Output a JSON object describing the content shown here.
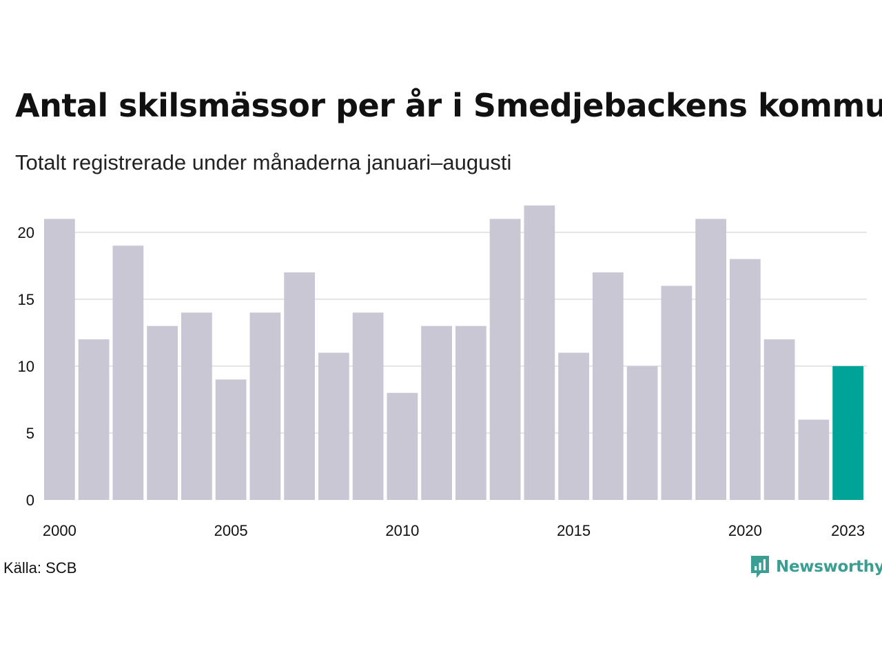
{
  "title": "Antal skilsmässor per år i Smedjebackens kommun",
  "subtitle": "Totalt registrerade under månaderna januari–augusti",
  "source": "Källa: SCB",
  "brand": {
    "name": "Newsworthy",
    "icon": "newsworthy-logo-icon",
    "color": "#3a9e92"
  },
  "chart_data": {
    "type": "bar",
    "categories": [
      "2000",
      "2001",
      "2002",
      "2003",
      "2004",
      "2005",
      "2006",
      "2007",
      "2008",
      "2009",
      "2010",
      "2011",
      "2012",
      "2013",
      "2014",
      "2015",
      "2016",
      "2017",
      "2018",
      "2019",
      "2020",
      "2021",
      "2022",
      "2023"
    ],
    "values": [
      21,
      12,
      19,
      13,
      14,
      9,
      14,
      17,
      11,
      14,
      8,
      13,
      13,
      21,
      22,
      11,
      17,
      10,
      16,
      21,
      18,
      12,
      6,
      10
    ],
    "x_tick_labels": [
      "2000",
      "2005",
      "2010",
      "2015",
      "2020",
      "2023"
    ],
    "y_ticks": [
      0,
      5,
      10,
      15,
      20
    ],
    "ylim": [
      0,
      22
    ],
    "grid": true,
    "bar_color": "#c8c7d3",
    "highlight_color": "#00a398",
    "highlight_category": "2023"
  }
}
